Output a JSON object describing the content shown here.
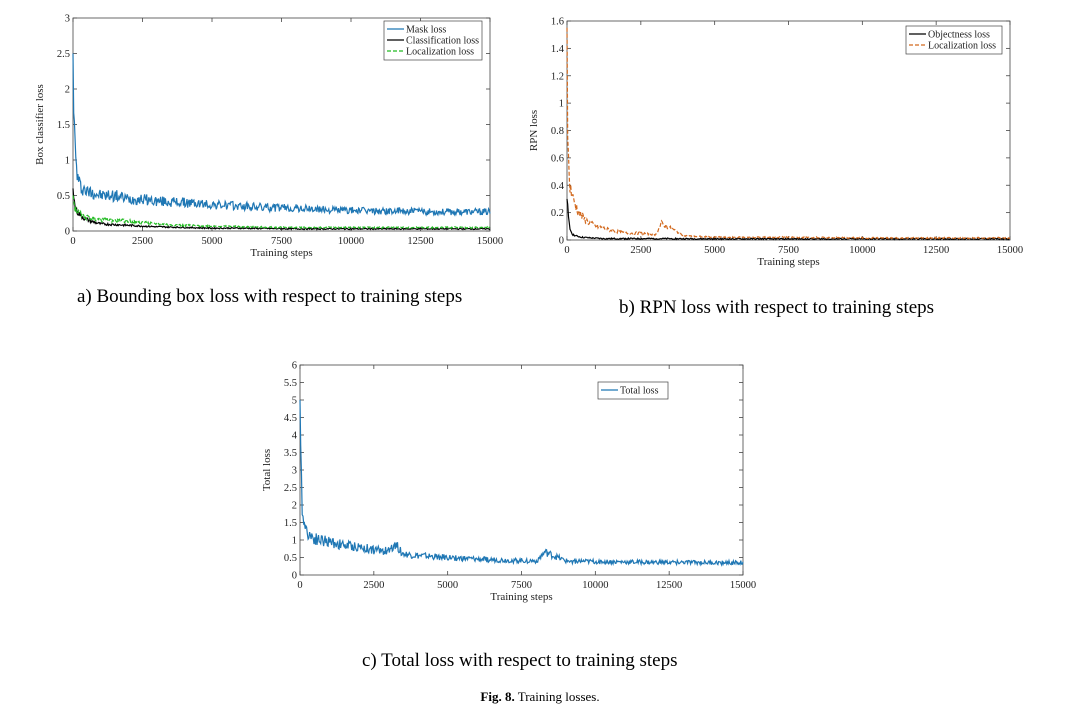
{
  "figure": {
    "label": "Fig. 8.",
    "text": "Training losses."
  },
  "panels": [
    {
      "caption": "a) Bounding box loss with respect to training steps"
    },
    {
      "caption": "b) RPN loss with respect to training steps"
    },
    {
      "caption": "c)   Total loss with respect to training steps"
    }
  ],
  "chart_data": [
    {
      "type": "line",
      "title": "",
      "xlabel": "Training steps",
      "ylabel": "Box classifier loss",
      "xlim": [
        0,
        15000
      ],
      "ylim": [
        0,
        3
      ],
      "xticks": [
        0,
        2500,
        5000,
        7500,
        10000,
        12500,
        15000
      ],
      "xtick_labels": [
        "0",
        "2500",
        "5000",
        "7500",
        "10000",
        "12500",
        "15000"
      ],
      "yticks": [
        0,
        0.5,
        1,
        1.5,
        2,
        2.5,
        3
      ],
      "ytick_labels": [
        "0",
        "0.5",
        "1",
        "1.5",
        "2",
        "2.5",
        "3"
      ],
      "legend_position": "top-right",
      "grid": false,
      "series": [
        {
          "name": "Mask loss",
          "color": "#1f77b4",
          "dash": "solid",
          "x": [
            0,
            50,
            100,
            150,
            200,
            300,
            400,
            500,
            700,
            1000,
            1500,
            2000,
            2500,
            3000,
            4000,
            5000,
            6000,
            7000,
            8000,
            9000,
            10000,
            11000,
            12000,
            13000,
            14000,
            15000
          ],
          "y": [
            2.5,
            1.4,
            1.0,
            0.8,
            0.7,
            0.6,
            0.6,
            0.55,
            0.55,
            0.5,
            0.5,
            0.45,
            0.45,
            0.42,
            0.4,
            0.37,
            0.35,
            0.33,
            0.32,
            0.3,
            0.29,
            0.28,
            0.28,
            0.27,
            0.27,
            0.27
          ]
        },
        {
          "name": "Classification loss",
          "color": "#000000",
          "dash": "solid",
          "x": [
            0,
            50,
            100,
            200,
            400,
            700,
            1000,
            1500,
            2000,
            2500,
            3000,
            4000,
            5000,
            6000,
            8000,
            10000,
            12000,
            15000
          ],
          "y": [
            0.6,
            0.4,
            0.3,
            0.25,
            0.18,
            0.13,
            0.1,
            0.09,
            0.08,
            0.07,
            0.06,
            0.05,
            0.04,
            0.04,
            0.03,
            0.03,
            0.03,
            0.03
          ]
        },
        {
          "name": "Localization loss",
          "color": "#22bb22",
          "dash": "dashed",
          "x": [
            0,
            50,
            100,
            200,
            400,
            700,
            1000,
            1500,
            2000,
            2500,
            3000,
            4000,
            5000,
            6000,
            8000,
            10000,
            12000,
            15000
          ],
          "y": [
            0.5,
            0.35,
            0.3,
            0.25,
            0.2,
            0.18,
            0.16,
            0.15,
            0.14,
            0.12,
            0.1,
            0.08,
            0.07,
            0.06,
            0.05,
            0.05,
            0.05,
            0.05
          ]
        }
      ]
    },
    {
      "type": "line",
      "title": "",
      "xlabel": "Training steps",
      "ylabel": "RPN loss",
      "xlim": [
        0,
        15000
      ],
      "ylim": [
        0,
        1.6
      ],
      "xticks": [
        0,
        2500,
        5000,
        7500,
        10000,
        12500,
        15000
      ],
      "xtick_labels": [
        "0",
        "2500",
        "5000",
        "7500",
        "10000",
        "12500",
        "15000"
      ],
      "yticks": [
        0,
        0.2,
        0.4,
        0.6,
        0.8,
        1,
        1.2,
        1.4,
        1.6
      ],
      "ytick_labels": [
        "0",
        "0.2",
        "0.4",
        "0.6",
        "0.8",
        "1",
        "1.2",
        "1.4",
        "1.6"
      ],
      "legend_position": "top-right",
      "grid": false,
      "series": [
        {
          "name": "Objectness loss",
          "color": "#000000",
          "dash": "solid",
          "x": [
            0,
            50,
            100,
            200,
            300,
            500,
            800,
            1200,
            2000,
            3000,
            5000,
            7500,
            10000,
            12500,
            15000
          ],
          "y": [
            0.3,
            0.15,
            0.08,
            0.04,
            0.03,
            0.02,
            0.015,
            0.01,
            0.01,
            0.01,
            0.008,
            0.008,
            0.008,
            0.008,
            0.008
          ]
        },
        {
          "name": "Localization loss",
          "color": "#d2691e",
          "dash": "dashed",
          "x": [
            0,
            30,
            60,
            100,
            150,
            200,
            300,
            400,
            600,
            800,
            1000,
            1500,
            2000,
            2500,
            3000,
            3200,
            4000,
            5000,
            6000,
            7500,
            10000,
            12500,
            15000
          ],
          "y": [
            1.55,
            0.7,
            0.5,
            0.4,
            0.35,
            0.3,
            0.25,
            0.2,
            0.15,
            0.12,
            0.1,
            0.07,
            0.05,
            0.05,
            0.04,
            0.12,
            0.03,
            0.02,
            0.02,
            0.02,
            0.015,
            0.015,
            0.015
          ]
        }
      ]
    },
    {
      "type": "line",
      "title": "",
      "xlabel": "Training steps",
      "ylabel": "Total loss",
      "xlim": [
        0,
        15000
      ],
      "ylim": [
        0,
        6
      ],
      "xticks": [
        0,
        2500,
        5000,
        7500,
        10000,
        12500,
        15000
      ],
      "xtick_labels": [
        "0",
        "2500",
        "5000",
        "7500",
        "10000",
        "12500",
        "15000"
      ],
      "yticks": [
        0,
        0.5,
        1,
        1.5,
        2,
        2.5,
        3,
        3.5,
        4,
        4.5,
        5,
        5.5,
        6
      ],
      "ytick_labels": [
        "0",
        "0.5",
        "1",
        "1.5",
        "2",
        "2.5",
        "3",
        "3.5",
        "4",
        "4.5",
        "5",
        "5.5",
        "6"
      ],
      "legend_position": "top-right",
      "grid": false,
      "series": [
        {
          "name": "Total loss",
          "color": "#1f77b4",
          "dash": "solid",
          "x": [
            0,
            30,
            60,
            100,
            150,
            200,
            300,
            400,
            500,
            700,
            1000,
            1500,
            2000,
            2500,
            3000,
            3200,
            3500,
            4000,
            5000,
            6000,
            7000,
            8000,
            8300,
            9000,
            10000,
            11000,
            12000,
            13000,
            14000,
            15000
          ],
          "y": [
            5.0,
            3.0,
            2.2,
            1.8,
            1.5,
            1.3,
            1.2,
            1.1,
            1.05,
            1.0,
            0.95,
            0.85,
            0.8,
            0.72,
            0.68,
            0.9,
            0.6,
            0.55,
            0.5,
            0.45,
            0.42,
            0.4,
            0.65,
            0.4,
            0.38,
            0.37,
            0.36,
            0.36,
            0.35,
            0.35
          ]
        }
      ]
    }
  ]
}
